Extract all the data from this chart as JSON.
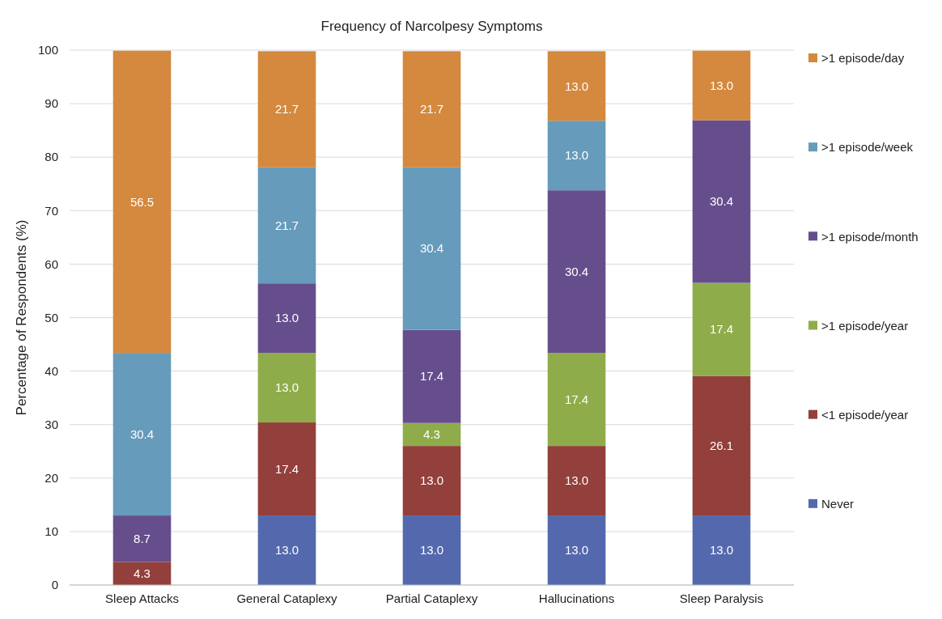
{
  "chart_data": {
    "type": "bar",
    "title": "Frequency of Narcolpesy Symptoms",
    "ylabel": "Percentage of Respondents (%)",
    "categories": [
      "Sleep Attacks",
      "General Cataplexy",
      "Partial Cataplexy",
      "Hallucinations",
      "Sleep Paralysis"
    ],
    "stacked": true,
    "ylim": [
      0,
      100
    ],
    "yticks": [
      0,
      10,
      20,
      30,
      40,
      50,
      60,
      70,
      80,
      90,
      100
    ],
    "grid": "y",
    "legend": "right",
    "series": [
      {
        "name": "Never",
        "color": "#5469ad",
        "values": [
          0,
          13.0,
          13.0,
          13.0,
          13.0
        ],
        "value_labels": [
          null,
          "13.0",
          "13.0",
          "13.0",
          "13.0"
        ]
      },
      {
        "name": "<1 episode/year",
        "color": "#933f3c",
        "values": [
          4.3,
          17.4,
          13.0,
          13.0,
          26.1
        ],
        "value_labels": [
          "4.3",
          "17.4",
          "13.0",
          "13.0",
          "26.1"
        ]
      },
      {
        "name": ">1 episode/year",
        "color": "#8ead4a",
        "values": [
          0,
          13.0,
          4.3,
          17.4,
          17.4
        ],
        "value_labels": [
          null,
          "13.0",
          "4.3",
          "17.4",
          "17.4"
        ]
      },
      {
        "name": ">1 episode/month",
        "color": "#664e8d",
        "values": [
          8.7,
          13.0,
          17.4,
          30.4,
          30.4
        ],
        "value_labels": [
          "8.7",
          "13.0",
          "17.4",
          "30.4",
          "30.4"
        ]
      },
      {
        "name": ">1 episode/week",
        "color": "#669bbb",
        "values": [
          30.4,
          21.7,
          30.4,
          13.0,
          0
        ],
        "value_labels": [
          "30.4",
          "21.7",
          "30.4",
          "13.0",
          null
        ]
      },
      {
        "name": ">1 episode/day",
        "color": "#d4893e",
        "values": [
          56.5,
          21.7,
          21.7,
          13.0,
          13.0
        ],
        "value_labels": [
          "56.5",
          "21.7",
          "21.7",
          "13.0",
          "13.0"
        ]
      }
    ]
  }
}
